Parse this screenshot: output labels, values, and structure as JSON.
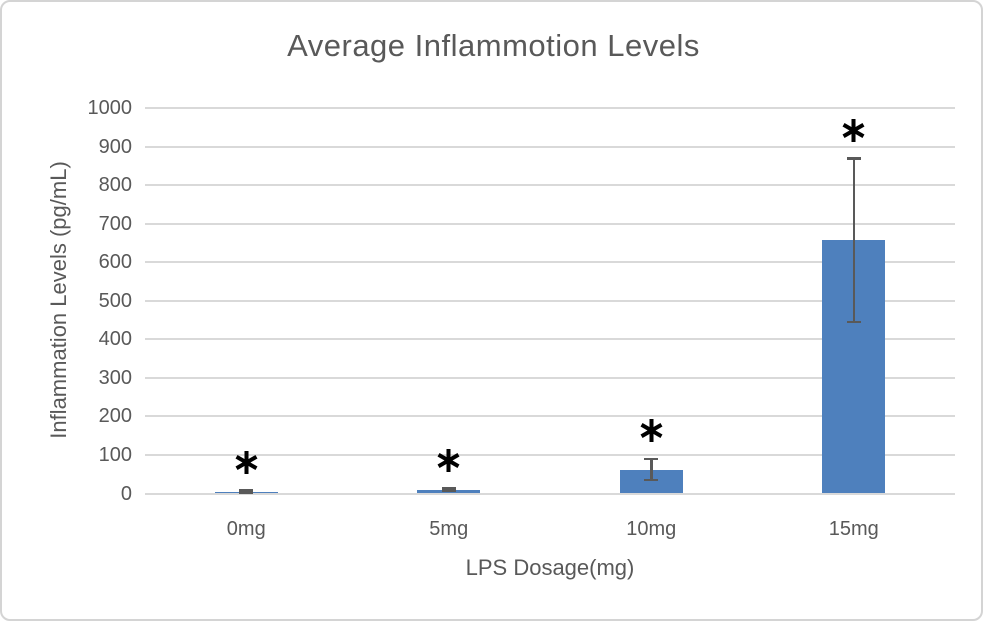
{
  "chart_data": {
    "type": "bar",
    "title": "Average Inflammotion Levels",
    "xlabel": "LPS Dosage(mg)",
    "ylabel": "Inflammation Levels (pg/mL)",
    "categories": [
      "0mg",
      "5mg",
      "10mg",
      "15mg"
    ],
    "values": [
      5,
      10,
      62,
      657
    ],
    "error_plus": [
      3,
      4,
      28,
      213
    ],
    "error_minus": [
      3,
      4,
      28,
      213
    ],
    "significance_markers": [
      "*",
      "*",
      "*",
      "*"
    ],
    "ylim": [
      0,
      1000
    ],
    "ytick_interval": 100,
    "grid": true,
    "legend": "none",
    "colors": {
      "bar": "#4E80BD",
      "error_bar": "#595959",
      "gridline": "#D9D9D9",
      "axis_line": "#D9D9D9",
      "text": "#595959",
      "marker": "#000000",
      "frame_border": "#D4D4D4",
      "background": "#FFFFFF"
    }
  }
}
